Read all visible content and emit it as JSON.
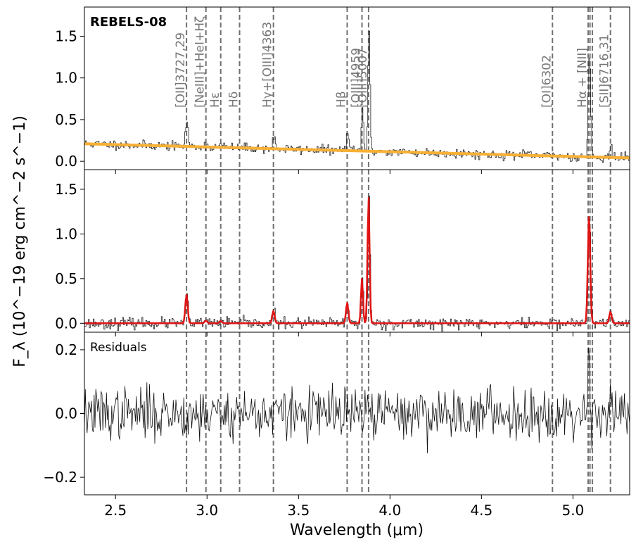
{
  "chart_data": {
    "type": "line",
    "ylabel": "F_λ (10^−19 erg cm^−2 s^−1)",
    "xlabel": "Wavelength (μm)",
    "xlim": [
      2.33,
      5.31
    ],
    "x_ticks": [
      2.5,
      3.0,
      3.5,
      4.0,
      4.5,
      5.0
    ],
    "x_tick_labels": [
      "2.5",
      "3.0",
      "3.5",
      "4.0",
      "4.5",
      "5.0"
    ],
    "line_markers": [
      {
        "x": 2.888,
        "label": "[OII]3727,29"
      },
      {
        "x": 2.994,
        "label": "[NeIII]+HeI+Hζ"
      },
      {
        "x": 3.075,
        "label": "Hε"
      },
      {
        "x": 3.178,
        "label": "Hδ"
      },
      {
        "x": 3.363,
        "label": "Hγ+[OIII]4363"
      },
      {
        "x": 3.766,
        "label": "Hβ"
      },
      {
        "x": 3.847,
        "label": "[OIII]4959"
      },
      {
        "x": 3.883,
        "label": "[OIII]5007"
      },
      {
        "x": 4.888,
        "label": "[OI]6302"
      },
      {
        "x": 5.083,
        "label": "Hα + [NII]"
      },
      {
        "x": 5.093,
        "label": ""
      },
      {
        "x": 5.106,
        "label": ""
      },
      {
        "x": 5.205,
        "label": "[SII]6716,31"
      }
    ],
    "panels": [
      {
        "name": "spectrum",
        "title": "REBELS-08",
        "ylim": [
          -0.1,
          1.85
        ],
        "y_ticks": [
          0.0,
          0.5,
          1.0,
          1.5
        ],
        "y_tick_labels": [
          "0.0",
          "0.5",
          "1.0",
          "1.5"
        ],
        "show_line_labels": true,
        "series": [
          {
            "role": "observed",
            "color": "#222222",
            "style": "step",
            "from": 2.33,
            "to": 5.31,
            "noise": 0.028,
            "seed": 11,
            "include_lines": true
          },
          {
            "role": "continuum",
            "color": "#f7b035",
            "style": "line",
            "x": [
              2.33,
              5.31
            ],
            "y": [
              0.21,
              0.04
            ]
          }
        ]
      },
      {
        "name": "model",
        "title": "",
        "ylim": [
          -0.1,
          1.72
        ],
        "y_ticks": [
          0.0,
          0.5,
          1.0,
          1.5
        ],
        "y_tick_labels": [
          "0.0",
          "0.5",
          "1.0",
          "1.5"
        ],
        "show_line_labels": false,
        "series": [
          {
            "role": "observed",
            "color": "#222222",
            "style": "step",
            "from": 2.33,
            "to": 5.31,
            "noise": 0.03,
            "seed": 23,
            "include_lines": true
          },
          {
            "role": "model",
            "color": "#e01414",
            "style": "line",
            "from": 2.33,
            "to": 5.31,
            "noise": 0,
            "include_lines": true
          }
        ]
      },
      {
        "name": "residuals",
        "title": "Residuals",
        "ylim": [
          -0.255,
          0.255
        ],
        "y_ticks": [
          -0.2,
          0.0,
          0.2
        ],
        "y_tick_labels": [
          "−0.2",
          "0.0",
          "0.2"
        ],
        "show_line_labels": false,
        "series": [
          {
            "role": "residual",
            "color": "#111111",
            "style": "line",
            "from": 2.33,
            "to": 5.31,
            "noise": 0.04,
            "seed": 37,
            "include_lines": false
          }
        ]
      }
    ],
    "emission_lines": [
      {
        "x": 2.888,
        "amp": 0.32,
        "sigma": 0.0065
      },
      {
        "x": 2.994,
        "amp": 0.03,
        "sigma": 0.007
      },
      {
        "x": 3.075,
        "amp": 0.025,
        "sigma": 0.007
      },
      {
        "x": 3.363,
        "amp": 0.14,
        "sigma": 0.0065
      },
      {
        "x": 3.766,
        "amp": 0.23,
        "sigma": 0.0065
      },
      {
        "x": 3.847,
        "amp": 0.5,
        "sigma": 0.0055
      },
      {
        "x": 3.883,
        "amp": 1.42,
        "sigma": 0.0055
      },
      {
        "x": 5.088,
        "amp": 1.22,
        "sigma": 0.0065
      },
      {
        "x": 5.205,
        "amp": 0.13,
        "sigma": 0.0065
      }
    ],
    "residual_features": [
      {
        "x": 5.086,
        "amp": 0.24,
        "sigma": 0.004
      },
      {
        "x": 5.206,
        "amp": 0.06,
        "sigma": 0.004
      }
    ]
  }
}
